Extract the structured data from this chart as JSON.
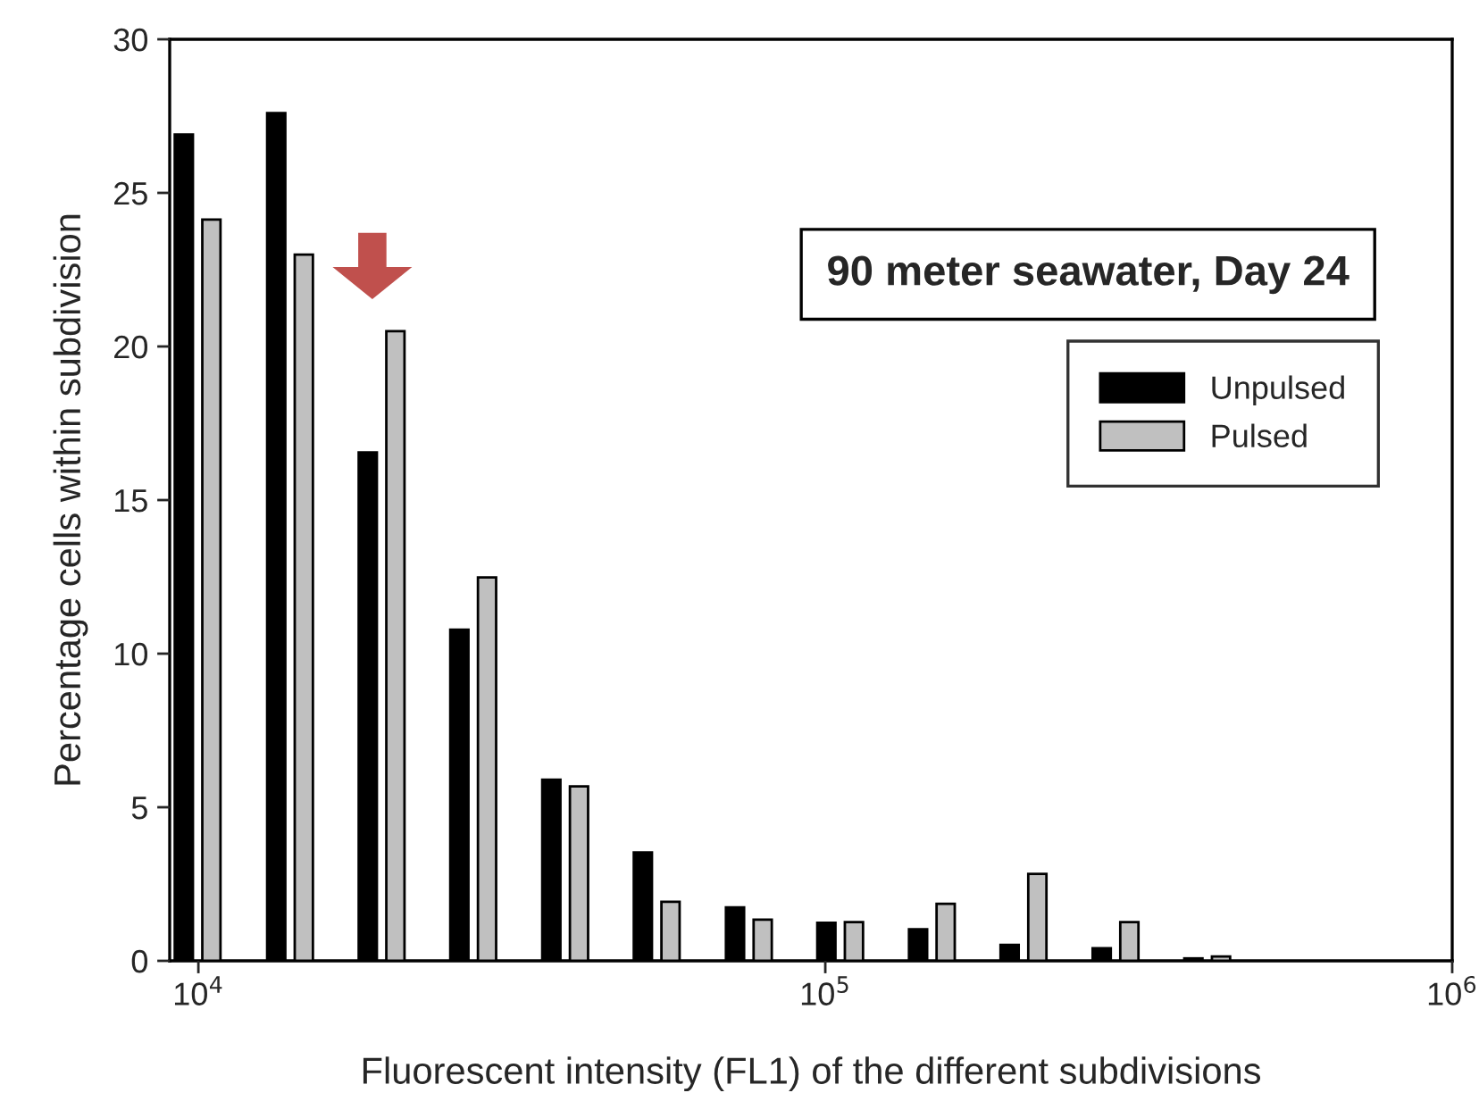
{
  "chart_data": {
    "type": "bar",
    "title": "90 meter seawater, Day 24",
    "xlabel": "Fluorescent intensity (FL1) of the different subdivisions",
    "ylabel": "Percentage cells within subdivision",
    "log": "x",
    "xlim": [
      9000,
      1000000
    ],
    "xticks": [
      {
        "value": 10000,
        "label": "10$^{4}$"
      },
      {
        "value": 100000,
        "label": "10$^{5}$"
      },
      {
        "value": 1000000,
        "label": "10$^{6}$"
      }
    ],
    "ylim": [
      0,
      30
    ],
    "yticks": [
      0,
      5,
      10,
      15,
      20,
      25,
      30
    ],
    "grid": false,
    "legend": "top right",
    "series": [
      {
        "name": "Unpulsed",
        "color": "#000000",
        "x": [
          9480,
          13310,
          18630,
          26080,
          36560,
          51170,
          71780,
          100400,
          140600,
          196800,
          276000,
          386500
        ],
        "values": [
          26.9,
          27.6,
          16.55,
          10.78,
          5.9,
          3.53,
          1.74,
          1.24,
          1.03,
          0.52,
          0.41,
          0.08
        ]
      },
      {
        "name": "Pulsed",
        "color": "#c0c0c0",
        "x": [
          10490,
          14730,
          20620,
          28870,
          40470,
          56640,
          79460,
          111100,
          155600,
          217900,
          305500,
          427800
        ],
        "values": [
          24.13,
          22.99,
          20.5,
          12.48,
          5.68,
          1.92,
          1.34,
          1.26,
          1.86,
          2.83,
          1.26,
          0.14
        ]
      }
    ]
  }
}
